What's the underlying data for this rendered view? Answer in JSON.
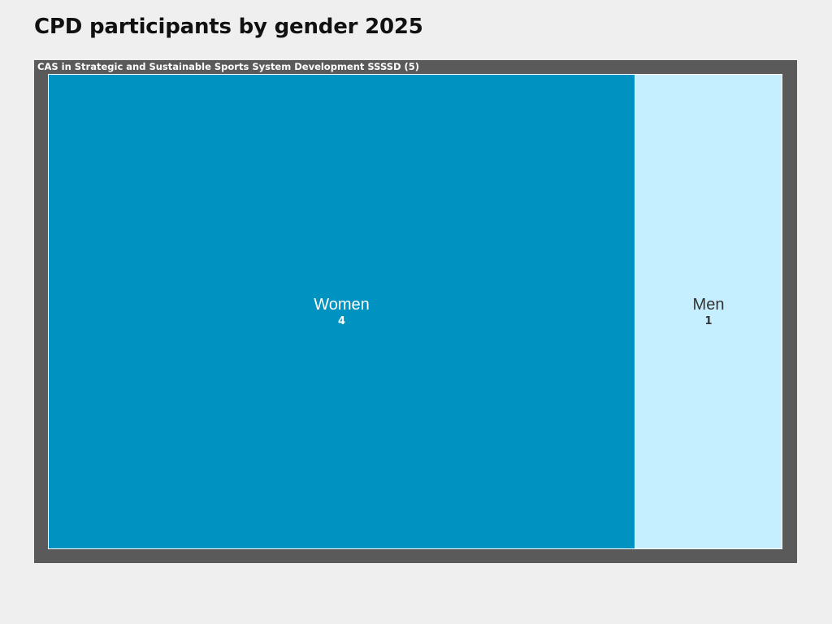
{
  "page": {
    "title": "CPD participants by gender 2025"
  },
  "chart_data": {
    "type": "treemap",
    "title": "CPD participants by gender 2025",
    "groups": [
      {
        "label": "CAS in Strategic and Sustainable Sports System Development SSSSD (5)",
        "total": 5,
        "items": [
          {
            "name": "Women",
            "value": 4,
            "value_label": "4",
            "color": "#0093c2",
            "text_color": "#ffffff"
          },
          {
            "name": "Men",
            "value": 1,
            "value_label": "1",
            "color": "#c5efff",
            "text_color": "#333333"
          }
        ]
      }
    ]
  }
}
